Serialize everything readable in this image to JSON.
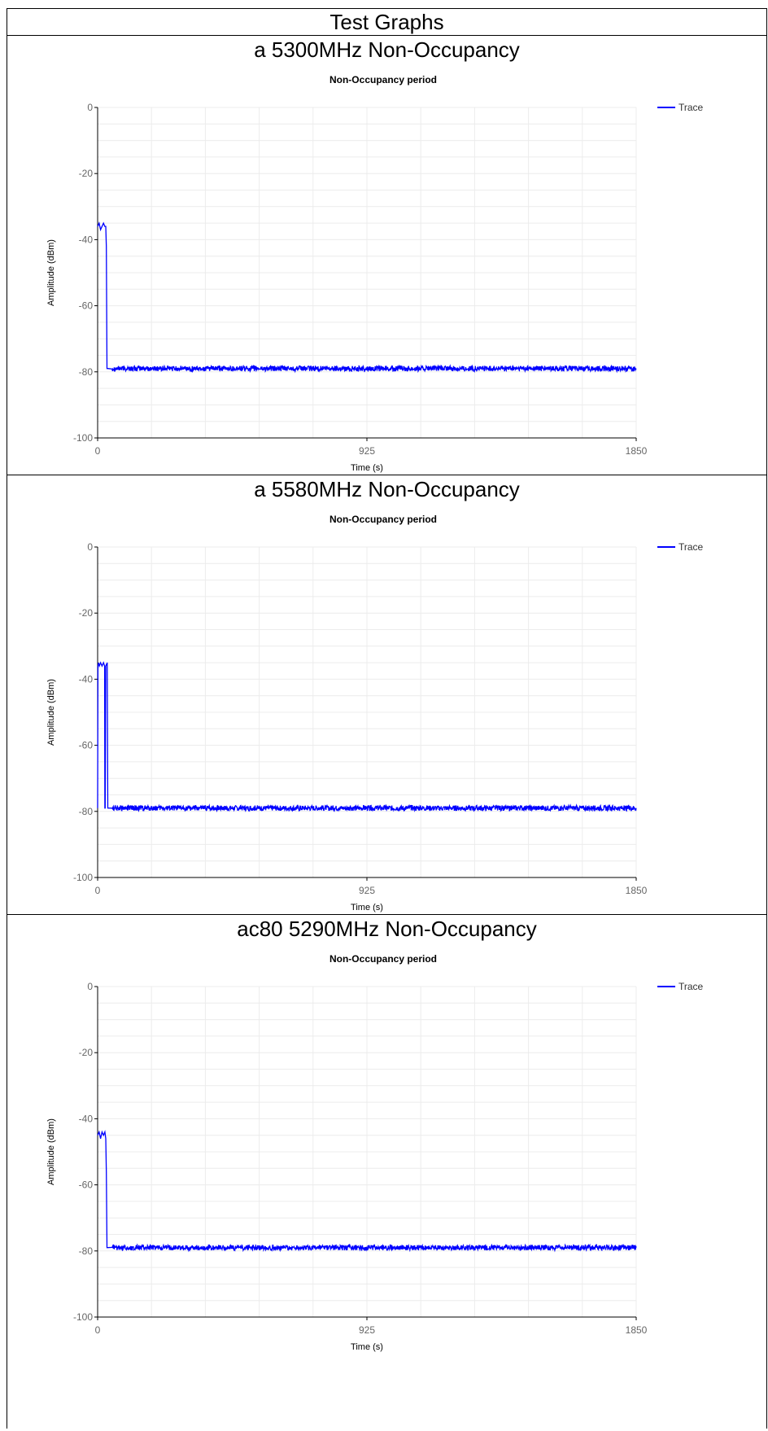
{
  "page_title": "Test Graphs",
  "colors": {
    "trace": "#0000ff",
    "grid": "#ececec",
    "axis": "#000000"
  },
  "chart_data": [
    {
      "type": "line",
      "section_title": "a 5300MHz Non-Occupancy",
      "title": "Non-Occupancy period",
      "xlabel": "Time (s)",
      "ylabel": "Amplitude (dBm)",
      "xlim": [
        0,
        1850
      ],
      "ylim": [
        -100,
        0
      ],
      "xticks": [
        "0",
        "925",
        "1850"
      ],
      "yticks": [
        "0",
        "-20",
        "-40",
        "-60",
        "-80",
        "-100"
      ],
      "grid": true,
      "legend_position": "top-right",
      "series": [
        {
          "name": "Trace",
          "x": [
            0,
            5,
            10,
            15,
            20,
            25,
            28,
            30,
            32,
            35,
            50,
            100,
            200,
            300,
            400,
            500,
            600,
            700,
            800,
            900,
            1000,
            1100,
            1200,
            1300,
            1400,
            1500,
            1600,
            1700,
            1800,
            1850
          ],
          "y": [
            -36,
            -35,
            -37,
            -36,
            -35,
            -36,
            -36,
            -42,
            -79,
            -79,
            -79,
            -79,
            -79,
            -79,
            -79,
            -79,
            -79,
            -79,
            -79,
            -79,
            -79,
            -79,
            -79,
            -79,
            -79,
            -79,
            -79,
            -79,
            -79,
            -79
          ]
        }
      ]
    },
    {
      "type": "line",
      "section_title": "a 5580MHz Non-Occupancy",
      "title": "Non-Occupancy period",
      "xlabel": "Time (s)",
      "ylabel": "Amplitude (dBm)",
      "xlim": [
        0,
        1850
      ],
      "ylim": [
        -100,
        0
      ],
      "xticks": [
        "0",
        "925",
        "1850"
      ],
      "yticks": [
        "0",
        "-20",
        "-40",
        "-60",
        "-80",
        "-100"
      ],
      "grid": true,
      "legend_position": "top-right",
      "series": [
        {
          "name": "Trace",
          "x": [
            0,
            1,
            3,
            6,
            10,
            15,
            20,
            24,
            25,
            26,
            28,
            33,
            35,
            50,
            100,
            200,
            300,
            400,
            500,
            600,
            700,
            800,
            900,
            1000,
            1100,
            1200,
            1300,
            1400,
            1500,
            1600,
            1700,
            1800,
            1850
          ],
          "y": [
            -79,
            -36,
            -35,
            -36,
            -35,
            -36,
            -35,
            -36,
            -79,
            -79,
            -36,
            -35,
            -79,
            -79,
            -79,
            -79,
            -79,
            -79,
            -79,
            -79,
            -79,
            -79,
            -79,
            -79,
            -79,
            -79,
            -79,
            -79,
            -79,
            -79,
            -79,
            -79,
            -79
          ]
        }
      ]
    },
    {
      "type": "line",
      "section_title": "ac80 5290MHz Non-Occupancy",
      "title": "Non-Occupancy period",
      "xlabel": "Time (s)",
      "ylabel": "Amplitude (dBm)",
      "xlim": [
        0,
        1850
      ],
      "ylim": [
        -100,
        0
      ],
      "xticks": [
        "0",
        "925",
        "1850"
      ],
      "yticks": [
        "0",
        "-20",
        "-40",
        "-60",
        "-80",
        "-100"
      ],
      "grid": true,
      "legend_position": "top-right",
      "series": [
        {
          "name": "Trace",
          "x": [
            0,
            5,
            10,
            15,
            20,
            25,
            28,
            30,
            32,
            35,
            50,
            100,
            200,
            300,
            400,
            500,
            600,
            700,
            800,
            900,
            1000,
            1100,
            1200,
            1300,
            1400,
            1500,
            1600,
            1700,
            1800,
            1850
          ],
          "y": [
            -45,
            -44,
            -46,
            -44,
            -45,
            -44,
            -46,
            -56,
            -79,
            -79,
            -79,
            -79,
            -79,
            -79,
            -79,
            -79,
            -79,
            -79,
            -79,
            -79,
            -79,
            -79,
            -79,
            -79,
            -79,
            -79,
            -79,
            -79,
            -79,
            -79
          ]
        }
      ]
    }
  ]
}
